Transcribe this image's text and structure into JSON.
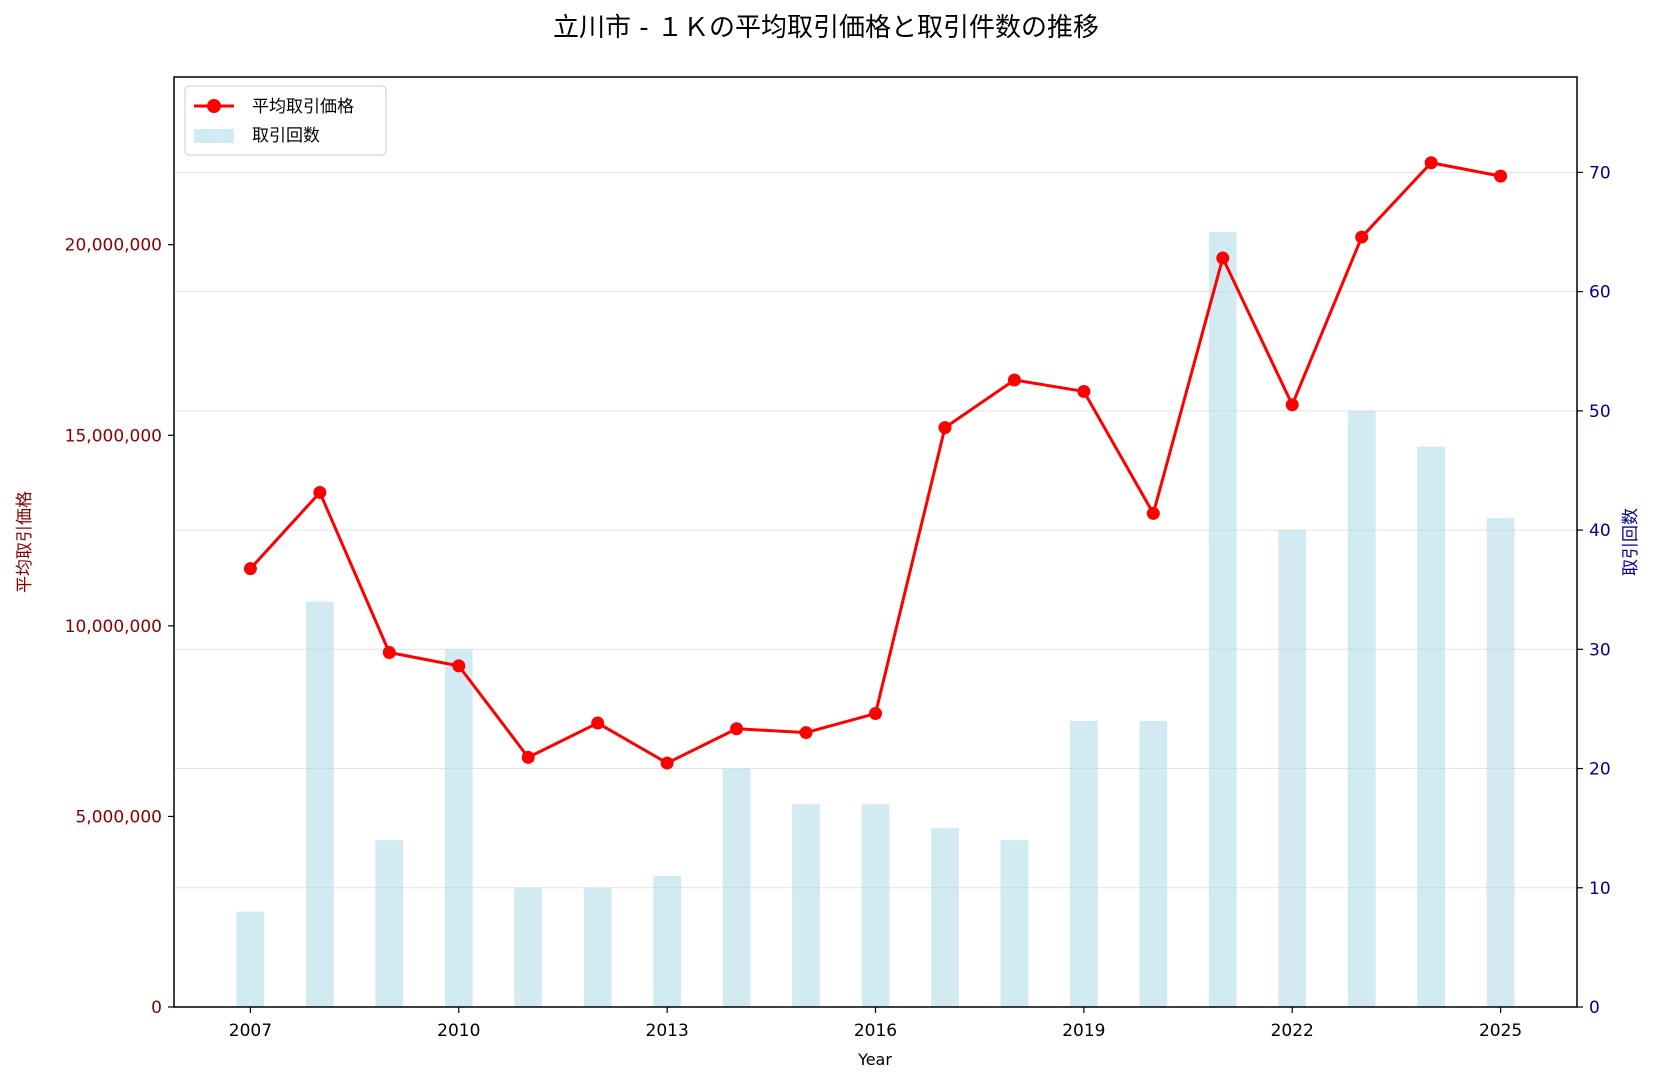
{
  "chart_data": {
    "type": "bar+line",
    "title": "立川市 - １Ｋの平均取引価格と取引件数の推移",
    "xlabel": "Year",
    "ylabel_left": "平均取引価格",
    "ylabel_right": "取引回数",
    "x": [
      2007,
      2008,
      2009,
      2010,
      2011,
      2012,
      2013,
      2014,
      2015,
      2016,
      2017,
      2018,
      2019,
      2020,
      2021,
      2022,
      2023,
      2024,
      2025
    ],
    "x_ticks": [
      "2007",
      "2010",
      "2013",
      "2016",
      "2019",
      "2022",
      "2025"
    ],
    "x_range": [
      2005.9,
      2026.1
    ],
    "series": [
      {
        "name": "平均取引価格",
        "type": "line",
        "axis": "left",
        "color": "#ff0000",
        "values": [
          11500000,
          13500000,
          9300000,
          8950000,
          6550000,
          7450000,
          6400000,
          7300000,
          7200000,
          7700000,
          15200000,
          16450000,
          16150000,
          12950000,
          19650000,
          15800000,
          20200000,
          22150000,
          21800000
        ]
      },
      {
        "name": "取引回数",
        "type": "bar",
        "axis": "right",
        "color": "#add8e6",
        "values": [
          8,
          34,
          14,
          30,
          10,
          10,
          11,
          20,
          17,
          17,
          15,
          14,
          24,
          24,
          65,
          40,
          50,
          47,
          41
        ]
      }
    ],
    "ylim_left": [
      0,
      24400000
    ],
    "yticks_left": [
      "0",
      "5,000,000",
      "10,000,000",
      "15,000,000",
      "20,000,000"
    ],
    "ylim_right": [
      0,
      78
    ],
    "yticks_right": [
      "0",
      "10",
      "20",
      "30",
      "40",
      "50",
      "60",
      "70"
    ],
    "grid": "horizontal (right axis)",
    "legend_position": "top-left"
  }
}
